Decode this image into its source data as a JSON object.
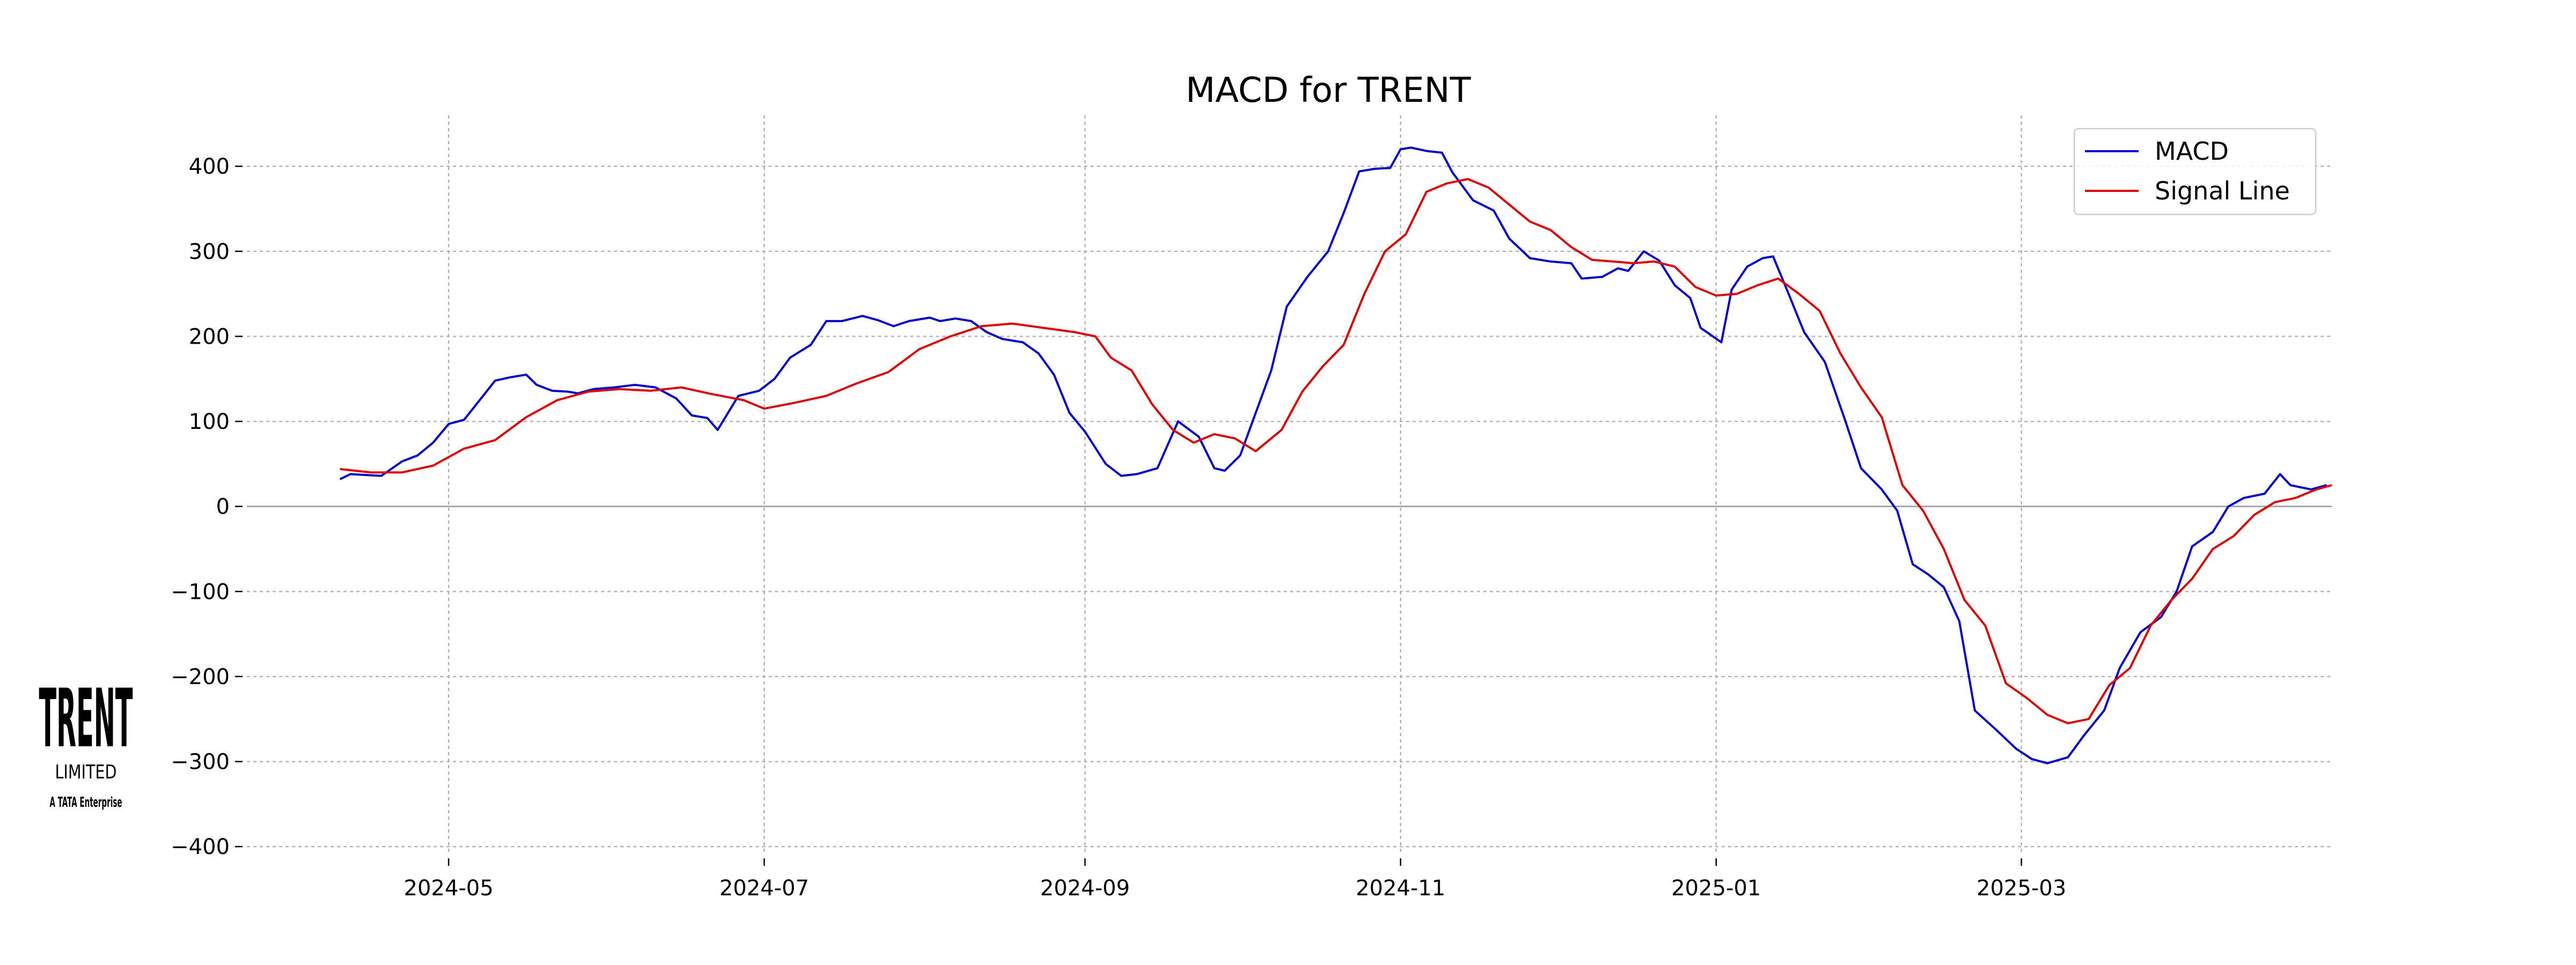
{
  "chart_data": {
    "type": "line",
    "title": "MACD for TRENT",
    "xlabel": "",
    "ylabel": "",
    "x_ticks": [
      "2024-05",
      "2024-07",
      "2024-09",
      "2024-11",
      "2025-01",
      "2025-03"
    ],
    "y_ticks": [
      400,
      300,
      200,
      100,
      0,
      -100,
      -200,
      -300,
      -400
    ],
    "xlim": [
      "2024-03-23",
      "2025-04-30"
    ],
    "ylim": [
      -410,
      460
    ],
    "grid": true,
    "legend_position": "top-right",
    "series": [
      {
        "name": "MACD",
        "color": "#0000cc",
        "points": [
          [
            "2024-04-10",
            32
          ],
          [
            "2024-04-12",
            38
          ],
          [
            "2024-04-15",
            37
          ],
          [
            "2024-04-18",
            36
          ],
          [
            "2024-04-22",
            53
          ],
          [
            "2024-04-25",
            60
          ],
          [
            "2024-04-28",
            75
          ],
          [
            "2024-05-01",
            97
          ],
          [
            "2024-05-04",
            102
          ],
          [
            "2024-05-07",
            125
          ],
          [
            "2024-05-10",
            148
          ],
          [
            "2024-05-13",
            152
          ],
          [
            "2024-05-16",
            155
          ],
          [
            "2024-05-18",
            143
          ],
          [
            "2024-05-21",
            136
          ],
          [
            "2024-05-24",
            135
          ],
          [
            "2024-05-26",
            133
          ],
          [
            "2024-05-29",
            138
          ],
          [
            "2024-06-02",
            140
          ],
          [
            "2024-06-06",
            143
          ],
          [
            "2024-06-10",
            140
          ],
          [
            "2024-06-14",
            127
          ],
          [
            "2024-06-17",
            107
          ],
          [
            "2024-06-20",
            104
          ],
          [
            "2024-06-22",
            90
          ],
          [
            "2024-06-26",
            130
          ],
          [
            "2024-06-30",
            136
          ],
          [
            "2024-07-03",
            150
          ],
          [
            "2024-07-06",
            175
          ],
          [
            "2024-07-10",
            190
          ],
          [
            "2024-07-13",
            218
          ],
          [
            "2024-07-16",
            218
          ],
          [
            "2024-07-20",
            224
          ],
          [
            "2024-07-23",
            219
          ],
          [
            "2024-07-26",
            212
          ],
          [
            "2024-07-29",
            218
          ],
          [
            "2024-08-02",
            222
          ],
          [
            "2024-08-04",
            218
          ],
          [
            "2024-08-07",
            221
          ],
          [
            "2024-08-10",
            218
          ],
          [
            "2024-08-13",
            205
          ],
          [
            "2024-08-16",
            197
          ],
          [
            "2024-08-20",
            193
          ],
          [
            "2024-08-23",
            180
          ],
          [
            "2024-08-26",
            155
          ],
          [
            "2024-08-29",
            110
          ],
          [
            "2024-09-01",
            88
          ],
          [
            "2024-09-05",
            50
          ],
          [
            "2024-09-08",
            36
          ],
          [
            "2024-09-11",
            38
          ],
          [
            "2024-09-15",
            45
          ],
          [
            "2024-09-19",
            100
          ],
          [
            "2024-09-23",
            82
          ],
          [
            "2024-09-26",
            45
          ],
          [
            "2024-09-28",
            42
          ],
          [
            "2024-10-01",
            60
          ],
          [
            "2024-10-04",
            110
          ],
          [
            "2024-10-07",
            160
          ],
          [
            "2024-10-10",
            235
          ],
          [
            "2024-10-14",
            270
          ],
          [
            "2024-10-18",
            300
          ],
          [
            "2024-10-21",
            345
          ],
          [
            "2024-10-24",
            394
          ],
          [
            "2024-10-27",
            397
          ],
          [
            "2024-10-30",
            398
          ],
          [
            "2024-11-01",
            420
          ],
          [
            "2024-11-03",
            422
          ],
          [
            "2024-11-06",
            418
          ],
          [
            "2024-11-09",
            416
          ],
          [
            "2024-11-11",
            393
          ],
          [
            "2024-11-15",
            360
          ],
          [
            "2024-11-19",
            348
          ],
          [
            "2024-11-22",
            315
          ],
          [
            "2024-11-26",
            292
          ],
          [
            "2024-11-30",
            288
          ],
          [
            "2024-12-04",
            286
          ],
          [
            "2024-12-06",
            268
          ],
          [
            "2024-12-10",
            270
          ],
          [
            "2024-12-13",
            280
          ],
          [
            "2024-12-15",
            277
          ],
          [
            "2024-12-18",
            300
          ],
          [
            "2024-12-21",
            289
          ],
          [
            "2024-12-24",
            260
          ],
          [
            "2024-12-27",
            245
          ],
          [
            "2024-12-29",
            210
          ],
          [
            "2025-01-02",
            193
          ],
          [
            "2025-01-04",
            255
          ],
          [
            "2025-01-07",
            282
          ],
          [
            "2025-01-10",
            292
          ],
          [
            "2025-01-12",
            294
          ],
          [
            "2025-01-15",
            250
          ],
          [
            "2025-01-18",
            205
          ],
          [
            "2025-01-22",
            170
          ],
          [
            "2025-01-26",
            100
          ],
          [
            "2025-01-29",
            45
          ],
          [
            "2025-02-02",
            20
          ],
          [
            "2025-02-05",
            -5
          ],
          [
            "2025-02-08",
            -68
          ],
          [
            "2025-02-11",
            -80
          ],
          [
            "2025-02-14",
            -95
          ],
          [
            "2025-02-17",
            -135
          ],
          [
            "2025-02-20",
            -240
          ],
          [
            "2025-02-24",
            -262
          ],
          [
            "2025-02-28",
            -285
          ],
          [
            "2025-03-03",
            -297
          ],
          [
            "2025-03-06",
            -302
          ],
          [
            "2025-03-10",
            -295
          ],
          [
            "2025-03-13",
            -270
          ],
          [
            "2025-03-17",
            -240
          ],
          [
            "2025-03-20",
            -190
          ],
          [
            "2025-03-24",
            -148
          ],
          [
            "2025-03-28",
            -130
          ],
          [
            "2025-03-31",
            -100
          ],
          [
            "2025-04-03",
            -47
          ],
          [
            "2025-04-07",
            -30
          ],
          [
            "2025-04-10",
            0
          ],
          [
            "2025-04-13",
            10
          ],
          [
            "2025-04-17",
            15
          ],
          [
            "2025-04-20",
            38
          ],
          [
            "2025-04-22",
            25
          ],
          [
            "2025-04-26",
            20
          ],
          [
            "2025-04-29",
            25
          ]
        ]
      },
      {
        "name": "Signal Line",
        "color": "#dd0000",
        "points": [
          [
            "2024-04-10",
            44
          ],
          [
            "2024-04-16",
            40
          ],
          [
            "2024-04-22",
            40
          ],
          [
            "2024-04-28",
            48
          ],
          [
            "2024-05-04",
            68
          ],
          [
            "2024-05-10",
            78
          ],
          [
            "2024-05-16",
            105
          ],
          [
            "2024-05-22",
            125
          ],
          [
            "2024-05-28",
            135
          ],
          [
            "2024-06-03",
            138
          ],
          [
            "2024-06-09",
            136
          ],
          [
            "2024-06-15",
            140
          ],
          [
            "2024-06-21",
            132
          ],
          [
            "2024-06-27",
            125
          ],
          [
            "2024-07-01",
            115
          ],
          [
            "2024-07-07",
            122
          ],
          [
            "2024-07-13",
            130
          ],
          [
            "2024-07-19",
            145
          ],
          [
            "2024-07-25",
            158
          ],
          [
            "2024-07-31",
            185
          ],
          [
            "2024-08-06",
            200
          ],
          [
            "2024-08-12",
            212
          ],
          [
            "2024-08-18",
            215
          ],
          [
            "2024-08-24",
            210
          ],
          [
            "2024-08-30",
            205
          ],
          [
            "2024-09-03",
            200
          ],
          [
            "2024-09-06",
            175
          ],
          [
            "2024-09-10",
            160
          ],
          [
            "2024-09-14",
            120
          ],
          [
            "2024-09-18",
            90
          ],
          [
            "2024-09-22",
            75
          ],
          [
            "2024-09-26",
            85
          ],
          [
            "2024-09-30",
            80
          ],
          [
            "2024-10-04",
            65
          ],
          [
            "2024-10-09",
            90
          ],
          [
            "2024-10-13",
            135
          ],
          [
            "2024-10-17",
            165
          ],
          [
            "2024-10-21",
            190
          ],
          [
            "2024-10-25",
            250
          ],
          [
            "2024-10-29",
            300
          ],
          [
            "2024-11-02",
            320
          ],
          [
            "2024-11-06",
            370
          ],
          [
            "2024-11-10",
            380
          ],
          [
            "2024-11-14",
            385
          ],
          [
            "2024-11-18",
            375
          ],
          [
            "2024-11-22",
            355
          ],
          [
            "2024-11-26",
            335
          ],
          [
            "2024-11-30",
            325
          ],
          [
            "2024-12-04",
            305
          ],
          [
            "2024-12-08",
            290
          ],
          [
            "2024-12-12",
            288
          ],
          [
            "2024-12-16",
            286
          ],
          [
            "2024-12-20",
            288
          ],
          [
            "2024-12-24",
            282
          ],
          [
            "2024-12-28",
            258
          ],
          [
            "2025-01-01",
            248
          ],
          [
            "2025-01-05",
            250
          ],
          [
            "2025-01-09",
            260
          ],
          [
            "2025-01-13",
            268
          ],
          [
            "2025-01-17",
            250
          ],
          [
            "2025-01-21",
            230
          ],
          [
            "2025-01-25",
            180
          ],
          [
            "2025-01-29",
            140
          ],
          [
            "2025-02-02",
            105
          ],
          [
            "2025-02-06",
            25
          ],
          [
            "2025-02-10",
            -5
          ],
          [
            "2025-02-14",
            -50
          ],
          [
            "2025-02-18",
            -110
          ],
          [
            "2025-02-22",
            -140
          ],
          [
            "2025-02-26",
            -208
          ],
          [
            "2025-03-02",
            -225
          ],
          [
            "2025-03-06",
            -245
          ],
          [
            "2025-03-10",
            -255
          ],
          [
            "2025-03-14",
            -250
          ],
          [
            "2025-03-18",
            -210
          ],
          [
            "2025-03-22",
            -190
          ],
          [
            "2025-03-26",
            -140
          ],
          [
            "2025-03-30",
            -110
          ],
          [
            "2025-04-03",
            -85
          ],
          [
            "2025-04-07",
            -50
          ],
          [
            "2025-04-11",
            -35
          ],
          [
            "2025-04-15",
            -10
          ],
          [
            "2025-04-19",
            5
          ],
          [
            "2025-04-23",
            10
          ],
          [
            "2025-04-27",
            20
          ],
          [
            "2025-04-30",
            25
          ]
        ]
      }
    ]
  },
  "logo": {
    "name": "TRENT",
    "sub": "LIMITED",
    "tagline": "A TATA Enterprise"
  }
}
